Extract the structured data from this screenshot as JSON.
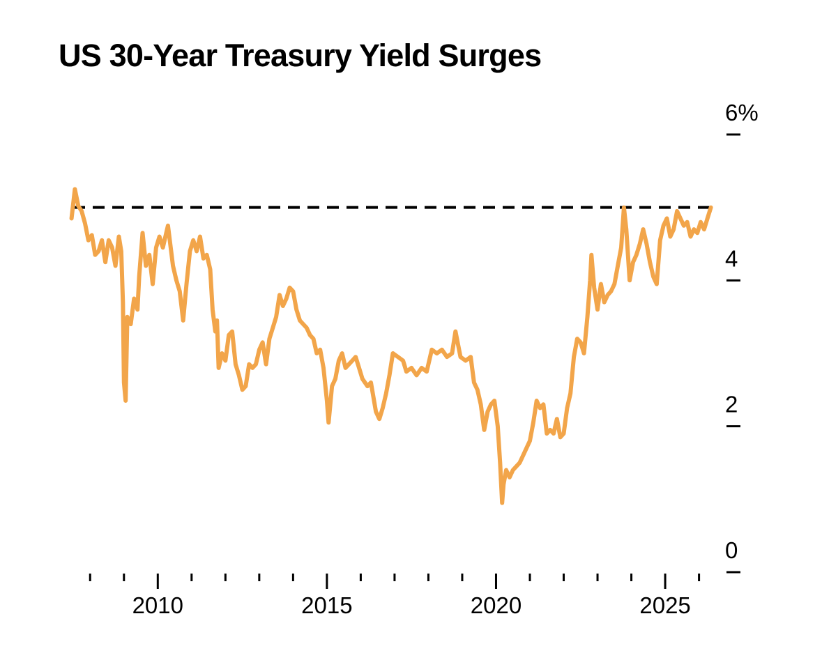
{
  "chart_data": {
    "type": "line",
    "title": "US 30-Year Treasury Yield Surges",
    "xlabel": "",
    "ylabel": "",
    "xlim": [
      2007.5,
      2026.4
    ],
    "ylim": [
      0,
      6
    ],
    "x_ticks": [
      {
        "value": 2010,
        "label": "2010"
      },
      {
        "value": 2015,
        "label": "2015"
      },
      {
        "value": 2020,
        "label": "2020"
      },
      {
        "value": 2025,
        "label": "2025"
      }
    ],
    "x_minor_ticks": [
      2008,
      2009,
      2011,
      2012,
      2013,
      2014,
      2016,
      2017,
      2018,
      2019,
      2021,
      2022,
      2023,
      2024,
      2026
    ],
    "y_ticks": [
      {
        "value": 6,
        "label": "6%"
      },
      {
        "value": 4,
        "label": "4"
      },
      {
        "value": 2,
        "label": "2"
      },
      {
        "value": 0,
        "label": "0"
      }
    ],
    "grid": false,
    "legend": "none",
    "line_color": "#f2a54a",
    "reference_line": {
      "y": 5.0,
      "style": "dashed",
      "color": "#000000"
    },
    "series": [
      {
        "values": [
          [
            2007.45,
            4.85
          ],
          [
            2007.55,
            5.25
          ],
          [
            2007.65,
            5.02
          ],
          [
            2007.75,
            4.95
          ],
          [
            2007.85,
            4.78
          ],
          [
            2007.95,
            4.55
          ],
          [
            2008.05,
            4.62
          ],
          [
            2008.15,
            4.35
          ],
          [
            2008.25,
            4.4
          ],
          [
            2008.35,
            4.55
          ],
          [
            2008.45,
            4.25
          ],
          [
            2008.55,
            4.55
          ],
          [
            2008.65,
            4.45
          ],
          [
            2008.75,
            4.2
          ],
          [
            2008.85,
            4.6
          ],
          [
            2008.92,
            4.4
          ],
          [
            2008.97,
            3.7
          ],
          [
            2009.0,
            2.6
          ],
          [
            2009.05,
            2.35
          ],
          [
            2009.1,
            3.5
          ],
          [
            2009.2,
            3.4
          ],
          [
            2009.3,
            3.75
          ],
          [
            2009.4,
            3.6
          ],
          [
            2009.45,
            4.05
          ],
          [
            2009.55,
            4.65
          ],
          [
            2009.65,
            4.2
          ],
          [
            2009.75,
            4.35
          ],
          [
            2009.85,
            3.95
          ],
          [
            2009.95,
            4.45
          ],
          [
            2010.05,
            4.6
          ],
          [
            2010.15,
            4.45
          ],
          [
            2010.3,
            4.75
          ],
          [
            2010.45,
            4.2
          ],
          [
            2010.55,
            4.0
          ],
          [
            2010.65,
            3.85
          ],
          [
            2010.75,
            3.45
          ],
          [
            2010.85,
            3.95
          ],
          [
            2010.95,
            4.4
          ],
          [
            2011.05,
            4.55
          ],
          [
            2011.15,
            4.4
          ],
          [
            2011.25,
            4.6
          ],
          [
            2011.35,
            4.3
          ],
          [
            2011.45,
            4.35
          ],
          [
            2011.55,
            4.15
          ],
          [
            2011.62,
            3.6
          ],
          [
            2011.7,
            3.3
          ],
          [
            2011.75,
            3.45
          ],
          [
            2011.8,
            2.8
          ],
          [
            2011.9,
            3.0
          ],
          [
            2012.0,
            2.9
          ],
          [
            2012.1,
            3.25
          ],
          [
            2012.2,
            3.3
          ],
          [
            2012.3,
            2.85
          ],
          [
            2012.4,
            2.7
          ],
          [
            2012.5,
            2.5
          ],
          [
            2012.6,
            2.55
          ],
          [
            2012.7,
            2.85
          ],
          [
            2012.8,
            2.8
          ],
          [
            2012.9,
            2.85
          ],
          [
            2013.0,
            3.05
          ],
          [
            2013.1,
            3.15
          ],
          [
            2013.2,
            2.85
          ],
          [
            2013.3,
            3.2
          ],
          [
            2013.4,
            3.35
          ],
          [
            2013.5,
            3.5
          ],
          [
            2013.6,
            3.8
          ],
          [
            2013.7,
            3.65
          ],
          [
            2013.8,
            3.75
          ],
          [
            2013.9,
            3.9
          ],
          [
            2014.0,
            3.85
          ],
          [
            2014.1,
            3.6
          ],
          [
            2014.2,
            3.45
          ],
          [
            2014.3,
            3.4
          ],
          [
            2014.4,
            3.35
          ],
          [
            2014.5,
            3.25
          ],
          [
            2014.6,
            3.2
          ],
          [
            2014.7,
            3.0
          ],
          [
            2014.8,
            3.05
          ],
          [
            2014.9,
            2.8
          ],
          [
            2015.0,
            2.35
          ],
          [
            2015.05,
            2.05
          ],
          [
            2015.15,
            2.55
          ],
          [
            2015.25,
            2.65
          ],
          [
            2015.35,
            2.9
          ],
          [
            2015.45,
            3.0
          ],
          [
            2015.55,
            2.8
          ],
          [
            2015.65,
            2.85
          ],
          [
            2015.75,
            2.9
          ],
          [
            2015.85,
            2.95
          ],
          [
            2015.95,
            2.8
          ],
          [
            2016.05,
            2.65
          ],
          [
            2016.2,
            2.55
          ],
          [
            2016.3,
            2.6
          ],
          [
            2016.45,
            2.2
          ],
          [
            2016.55,
            2.1
          ],
          [
            2016.65,
            2.25
          ],
          [
            2016.75,
            2.45
          ],
          [
            2016.85,
            2.7
          ],
          [
            2016.95,
            3.0
          ],
          [
            2017.1,
            2.95
          ],
          [
            2017.25,
            2.9
          ],
          [
            2017.35,
            2.75
          ],
          [
            2017.5,
            2.8
          ],
          [
            2017.65,
            2.7
          ],
          [
            2017.8,
            2.8
          ],
          [
            2017.95,
            2.75
          ],
          [
            2018.1,
            3.05
          ],
          [
            2018.25,
            3.0
          ],
          [
            2018.4,
            3.05
          ],
          [
            2018.55,
            2.95
          ],
          [
            2018.7,
            3.0
          ],
          [
            2018.8,
            3.3
          ],
          [
            2018.95,
            2.95
          ],
          [
            2019.1,
            2.9
          ],
          [
            2019.25,
            2.95
          ],
          [
            2019.35,
            2.6
          ],
          [
            2019.45,
            2.5
          ],
          [
            2019.55,
            2.3
          ],
          [
            2019.65,
            1.95
          ],
          [
            2019.75,
            2.2
          ],
          [
            2019.85,
            2.3
          ],
          [
            2019.95,
            2.35
          ],
          [
            2020.05,
            2.0
          ],
          [
            2020.12,
            1.5
          ],
          [
            2020.18,
            0.95
          ],
          [
            2020.22,
            1.2
          ],
          [
            2020.3,
            1.4
          ],
          [
            2020.4,
            1.3
          ],
          [
            2020.5,
            1.4
          ],
          [
            2020.6,
            1.45
          ],
          [
            2020.7,
            1.5
          ],
          [
            2020.8,
            1.6
          ],
          [
            2020.9,
            1.7
          ],
          [
            2021.0,
            1.8
          ],
          [
            2021.1,
            2.05
          ],
          [
            2021.2,
            2.35
          ],
          [
            2021.3,
            2.25
          ],
          [
            2021.4,
            2.3
          ],
          [
            2021.5,
            1.9
          ],
          [
            2021.6,
            1.95
          ],
          [
            2021.7,
            1.9
          ],
          [
            2021.8,
            2.1
          ],
          [
            2021.9,
            1.85
          ],
          [
            2022.0,
            1.9
          ],
          [
            2022.1,
            2.25
          ],
          [
            2022.2,
            2.45
          ],
          [
            2022.3,
            2.95
          ],
          [
            2022.4,
            3.2
          ],
          [
            2022.5,
            3.15
          ],
          [
            2022.6,
            3.0
          ],
          [
            2022.7,
            3.5
          ],
          [
            2022.78,
            4.0
          ],
          [
            2022.82,
            4.35
          ],
          [
            2022.9,
            3.9
          ],
          [
            2023.0,
            3.6
          ],
          [
            2023.1,
            3.95
          ],
          [
            2023.2,
            3.7
          ],
          [
            2023.3,
            3.8
          ],
          [
            2023.4,
            3.85
          ],
          [
            2023.5,
            3.95
          ],
          [
            2023.6,
            4.2
          ],
          [
            2023.7,
            4.45
          ],
          [
            2023.78,
            5.0
          ],
          [
            2023.85,
            4.7
          ],
          [
            2023.95,
            4.0
          ],
          [
            2024.05,
            4.25
          ],
          [
            2024.15,
            4.35
          ],
          [
            2024.25,
            4.5
          ],
          [
            2024.35,
            4.7
          ],
          [
            2024.45,
            4.5
          ],
          [
            2024.55,
            4.25
          ],
          [
            2024.65,
            4.05
          ],
          [
            2024.75,
            3.95
          ],
          [
            2024.85,
            4.55
          ],
          [
            2024.95,
            4.75
          ],
          [
            2025.05,
            4.85
          ],
          [
            2025.15,
            4.6
          ],
          [
            2025.25,
            4.7
          ],
          [
            2025.35,
            4.95
          ],
          [
            2025.45,
            4.85
          ],
          [
            2025.55,
            4.75
          ],
          [
            2025.65,
            4.8
          ],
          [
            2025.75,
            4.6
          ],
          [
            2025.85,
            4.7
          ],
          [
            2025.95,
            4.65
          ],
          [
            2026.05,
            4.8
          ],
          [
            2026.15,
            4.7
          ],
          [
            2026.25,
            4.85
          ],
          [
            2026.35,
            5.0
          ]
        ]
      }
    ]
  }
}
